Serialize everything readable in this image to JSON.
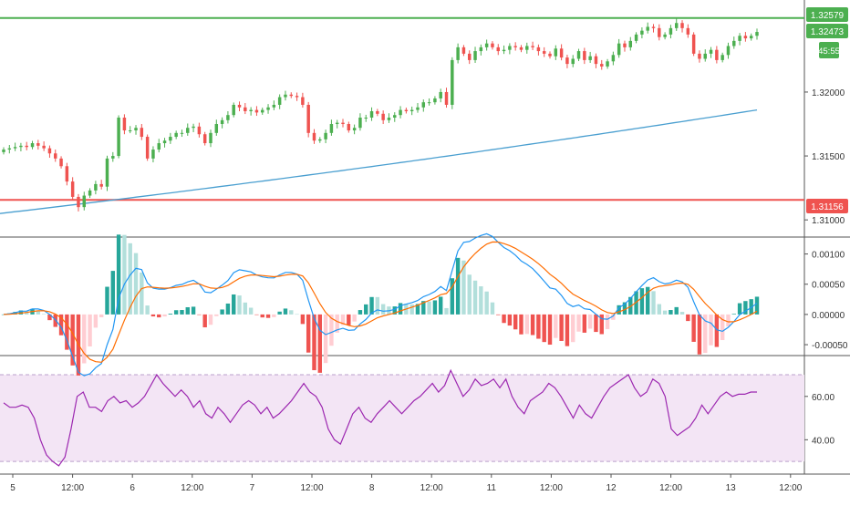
{
  "colors": {
    "up": "#26a69a",
    "down": "#ef5350",
    "candle_up": "#4caf50",
    "candle_down": "#ef5350",
    "ma": "#4a9fd0",
    "macd": "#2196f3",
    "signal": "#ff6d00",
    "hist_up_strong": "#26a69a",
    "hist_up_weak": "#b2dfdb",
    "hist_down_strong": "#ef5350",
    "hist_down_weak": "#ffcdd2",
    "rsi": "#9c27b0",
    "rsi_band": "#f3e5f5",
    "res_line": "#4caf50",
    "sup_line": "#ef5350",
    "axis_text": "#333333"
  },
  "price_labels": {
    "resistance": "1.32579",
    "last": "1.32473",
    "countdown": "45:55",
    "support": "1.31156"
  },
  "chart_data": [
    {
      "type": "candlestick",
      "panel": "price",
      "ylim": [
        1.3088,
        1.3272
      ],
      "y_ticks": [
        "1.32000",
        "1.31500",
        "1.31000"
      ],
      "y_tick_values": [
        1.32,
        1.315,
        1.31
      ],
      "horizontal_lines": [
        {
          "name": "resistance",
          "value": 1.32579
        },
        {
          "name": "support",
          "value": 1.31156
        }
      ],
      "closes": [
        1.3155,
        1.3156,
        1.3157,
        1.3158,
        1.3157,
        1.316,
        1.3158,
        1.3156,
        1.3152,
        1.3148,
        1.3142,
        1.313,
        1.3118,
        1.311,
        1.3119,
        1.3123,
        1.3128,
        1.3126,
        1.3148,
        1.315,
        1.318,
        1.317,
        1.317,
        1.3172,
        1.3165,
        1.3148,
        1.3155,
        1.316,
        1.3162,
        1.3165,
        1.3168,
        1.3168,
        1.3172,
        1.3173,
        1.3167,
        1.316,
        1.3168,
        1.3175,
        1.3178,
        1.3182,
        1.319,
        1.3188,
        1.3185,
        1.3186,
        1.3184,
        1.3186,
        1.3188,
        1.319,
        1.3196,
        1.3198,
        1.3197,
        1.3196,
        1.319,
        1.3168,
        1.3162,
        1.3163,
        1.3168,
        1.3175,
        1.3176,
        1.3175,
        1.317,
        1.3172,
        1.318,
        1.318,
        1.3185,
        1.3183,
        1.3178,
        1.318,
        1.3182,
        1.3186,
        1.3185,
        1.3186,
        1.3188,
        1.3192,
        1.3192,
        1.3195,
        1.32,
        1.319,
        1.3225,
        1.3235,
        1.323,
        1.3225,
        1.3232,
        1.3235,
        1.3238,
        1.3235,
        1.3232,
        1.3233,
        1.3236,
        1.3235,
        1.3233,
        1.3236,
        1.3235,
        1.3232,
        1.323,
        1.3228,
        1.3234,
        1.3227,
        1.3222,
        1.3226,
        1.3232,
        1.3225,
        1.3228,
        1.3222,
        1.322,
        1.3224,
        1.3229,
        1.3238,
        1.3235,
        1.324,
        1.3245,
        1.3248,
        1.3251,
        1.325,
        1.3243,
        1.3245,
        1.325,
        1.3254,
        1.325,
        1.3245,
        1.323,
        1.3226,
        1.323,
        1.3233,
        1.3225,
        1.3229,
        1.3236,
        1.324,
        1.3244,
        1.3242,
        1.3244,
        1.3247
      ],
      "ma": {
        "start": 1.3105,
        "end": 1.3186,
        "shape": "rising"
      }
    },
    {
      "type": "macd",
      "panel": "macd",
      "ylim": [
        -0.00065,
        0.00125
      ],
      "y_ticks": [
        "0.00100",
        "0.00050",
        "0.00000",
        "-0.00050"
      ],
      "y_tick_values": [
        0.001,
        0.0005,
        0.0,
        -0.0005
      ]
    },
    {
      "type": "line",
      "panel": "rsi",
      "ylim": [
        25,
        78
      ],
      "y_ticks": [
        "60.00",
        "40.00"
      ],
      "y_tick_values": [
        60,
        40
      ],
      "band": [
        30,
        70
      ],
      "values": [
        57,
        55,
        55,
        56,
        55,
        50,
        40,
        33,
        30,
        28,
        32,
        45,
        60,
        62,
        55,
        55,
        53,
        58,
        60,
        57,
        58,
        55,
        57,
        60,
        65,
        70,
        66,
        63,
        60,
        63,
        60,
        55,
        58,
        52,
        50,
        55,
        52,
        48,
        52,
        56,
        58,
        56,
        52,
        55,
        50,
        52,
        55,
        58,
        62,
        66,
        62,
        60,
        55,
        45,
        40,
        38,
        45,
        52,
        55,
        50,
        48,
        52,
        55,
        58,
        55,
        52,
        55,
        58,
        60,
        63,
        66,
        62,
        65,
        72,
        66,
        60,
        63,
        68,
        65,
        66,
        68,
        64,
        68,
        60,
        55,
        52,
        58,
        60,
        62,
        66,
        64,
        60,
        55,
        50,
        56,
        52,
        50,
        55,
        60,
        64,
        66,
        68,
        70,
        64,
        60,
        62,
        68,
        66,
        60,
        45,
        42,
        44,
        46,
        50,
        56,
        52,
        56,
        60,
        62,
        60,
        61,
        61,
        62,
        62
      ],
      "x_label_note": "rsi plotted across same time axis"
    }
  ],
  "time_axis": {
    "labels": [
      "5",
      "12:00",
      "6",
      "12:00",
      "7",
      "12:00",
      "8",
      "12:00",
      "11",
      "12:00",
      "12",
      "12:00",
      "13",
      "12:00"
    ]
  }
}
